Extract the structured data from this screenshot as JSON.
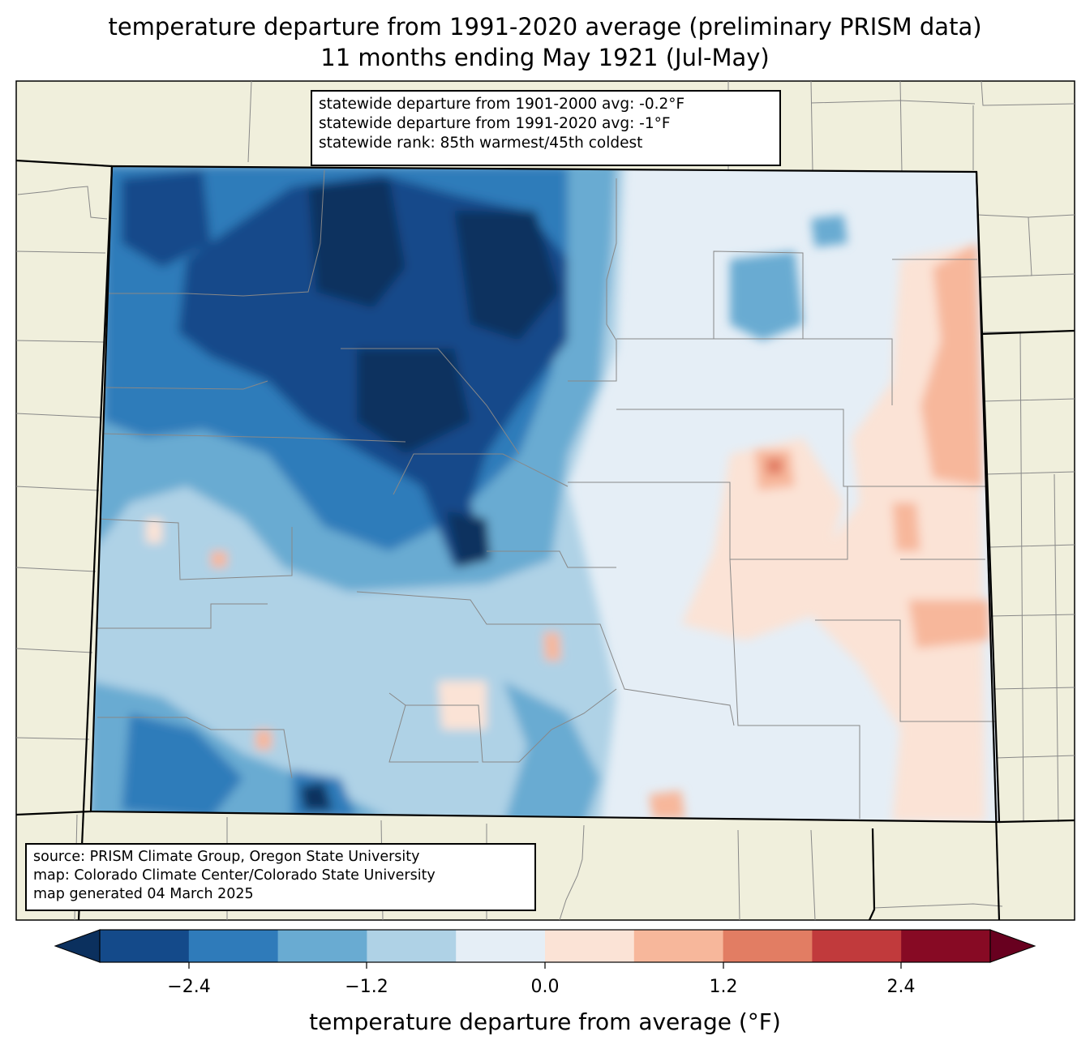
{
  "title": {
    "line1": "temperature departure from 1991-2020 average (preliminary PRISM data)",
    "line2": "11 months ending May 1921 (Jul-May)"
  },
  "stats": {
    "line1": "statewide departure from 1901-2000 avg: -0.2°F",
    "line2": "statewide departure from 1991-2020 avg: -1°F",
    "line3": "statewide rank: 85th warmest/45th coldest"
  },
  "source": {
    "line1": "source: PRISM Climate Group, Oregon State University",
    "line2": "map: Colorado Climate Center/Colorado State University",
    "line3": "map generated 04 March 2025"
  },
  "colorbar": {
    "label": "temperature departure from average (°F)",
    "ticks": [
      "−2.4",
      "−1.2",
      "0.0",
      "1.2",
      "2.4"
    ],
    "colors": [
      "#144a8a",
      "#2f7bba",
      "#69abd2",
      "#afd2e6",
      "#e5eef6",
      "#fbe3d6",
      "#f7b79b",
      "#e27d63",
      "#c13a3c",
      "#870a24"
    ],
    "under_color": "#0b305e",
    "over_color": "#68001f"
  },
  "palette": {
    "land": "#f0efdc",
    "deep_blue": "#0b305e"
  }
}
